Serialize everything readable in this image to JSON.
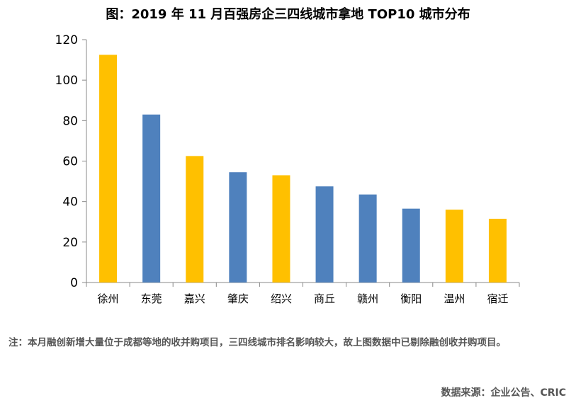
{
  "chart_data": {
    "type": "bar",
    "title": "图：2019 年 11 月百强房企三四线城市拿地 TOP10 城市分布",
    "categories": [
      "徐州",
      "东莞",
      "嘉兴",
      "肇庆",
      "绍兴",
      "商丘",
      "赣州",
      "衡阳",
      "温州",
      "宿迁"
    ],
    "values": [
      112.5,
      83,
      62.5,
      54.5,
      53,
      47.5,
      43.5,
      36.5,
      36,
      31.5
    ],
    "bar_colors": [
      "#FFC000",
      "#4F81BD",
      "#FFC000",
      "#4F81BD",
      "#FFC000",
      "#4F81BD",
      "#4F81BD",
      "#4F81BD",
      "#FFC000",
      "#FFC000"
    ],
    "ylim": [
      0,
      120
    ],
    "yticks": [
      0,
      20,
      40,
      60,
      80,
      100,
      120
    ],
    "xlabel": "",
    "ylabel": "",
    "grid": false,
    "legend": "none"
  },
  "note": "注：本月融创新增大量位于成都等地的收并购项目，三四线城市排名影响较大，故上图数据中已剔除融创收并购项目。",
  "source": "数据来源：企业公告、CRIC"
}
